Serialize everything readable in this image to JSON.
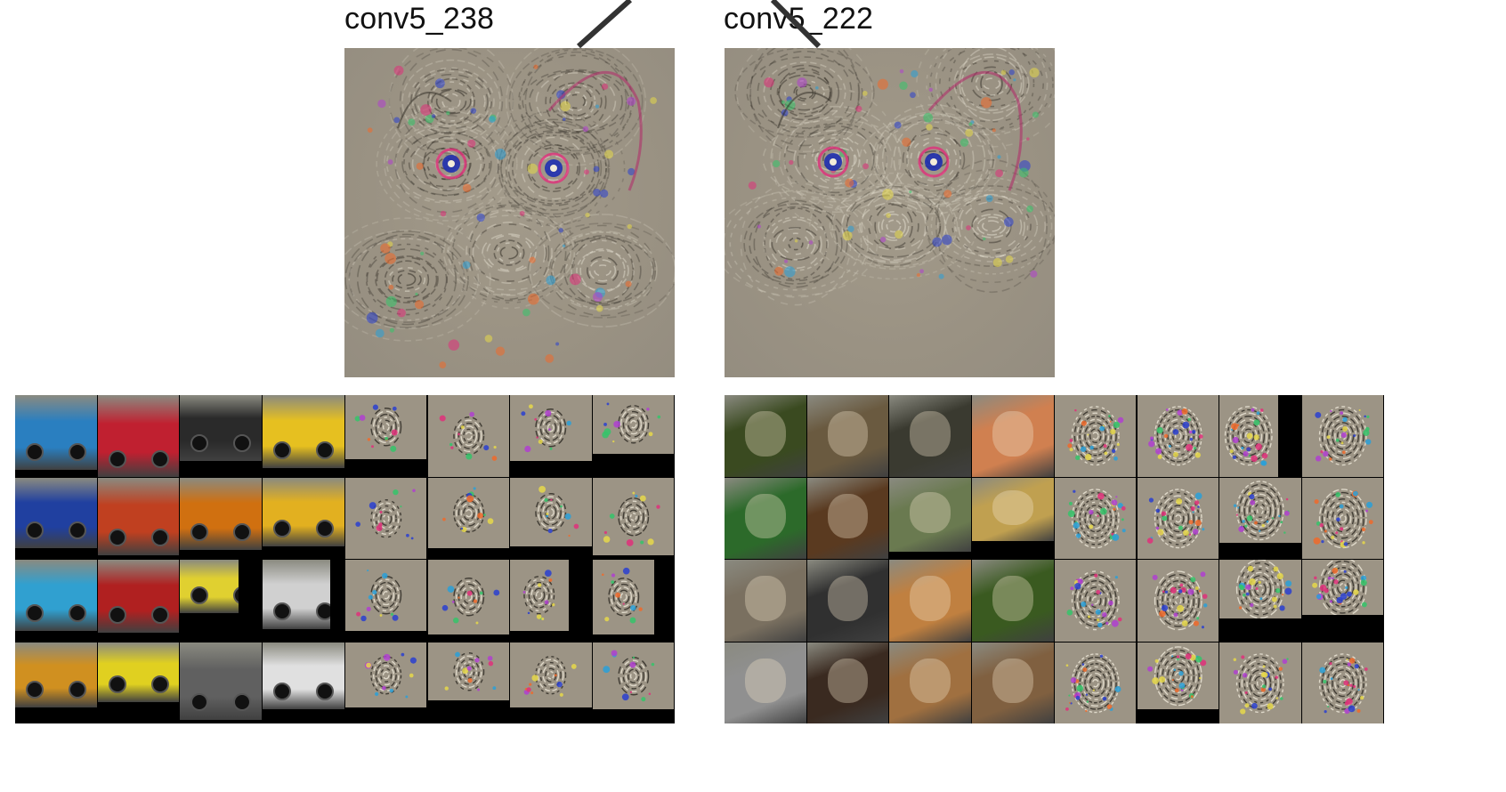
{
  "figure": {
    "labels": {
      "left": "conv5_238",
      "right": "conv5_222"
    },
    "top_images": {
      "left": "vehicle-grid",
      "right": "animal-face-grid"
    },
    "colors": {
      "background": "#ffffff",
      "panel": "#000000",
      "deconv_gray": "#9c9485",
      "connector": "#333333"
    }
  }
}
